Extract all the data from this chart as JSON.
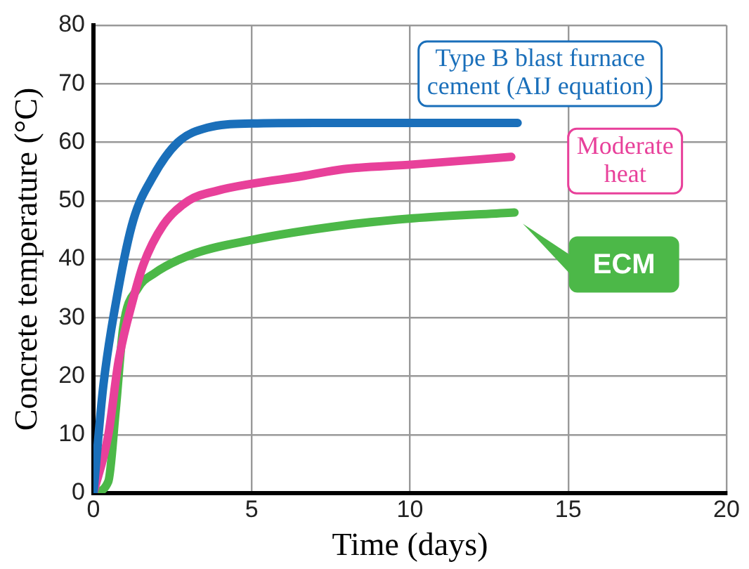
{
  "chart_data": {
    "type": "line",
    "xlabel": "Time (days)",
    "ylabel": "Concrete temperature (°C)",
    "xlim": [
      0,
      20
    ],
    "xticks": [
      0,
      5,
      10,
      15,
      20
    ],
    "ylim": [
      0,
      80
    ],
    "yticks": [
      0,
      10,
      20,
      30,
      40,
      50,
      60,
      70,
      80
    ],
    "grid": true,
    "legend": "right",
    "marker": "none",
    "line_style": "solid",
    "series": [
      {
        "name": "Type B blast furnace cement (AIJ equation)",
        "color": "#1a6fba",
        "x": [
          0,
          0.31,
          0.79,
          1.26,
          1.89,
          2.67,
          3.6,
          5,
          7,
          10,
          13.4
        ],
        "values": [
          0,
          18.3,
          35,
          46.7,
          54.2,
          60,
          62.5,
          63.2,
          63.3,
          63.3,
          63.3
        ]
      },
      {
        "name": "Moderate heat",
        "color": "#e8409a",
        "x": [
          0,
          0.47,
          0.79,
          1.26,
          1.57,
          2.2,
          3,
          3.9,
          5,
          6.6,
          7.9,
          10.1,
          13.2
        ],
        "values": [
          0,
          10,
          22.5,
          33.3,
          39,
          45.8,
          50,
          51.7,
          52.9,
          54.2,
          55.4,
          56.2,
          57.5
        ]
      },
      {
        "name": "ECM",
        "color": "#4cb848",
        "x": [
          0,
          0.47,
          0.7,
          0.94,
          1.4,
          1.9,
          3.1,
          5,
          7.9,
          10.1,
          13.3
        ],
        "values": [
          0,
          2,
          14,
          28.3,
          35,
          37.5,
          40.8,
          43.3,
          45.8,
          47,
          48
        ]
      }
    ]
  }
}
